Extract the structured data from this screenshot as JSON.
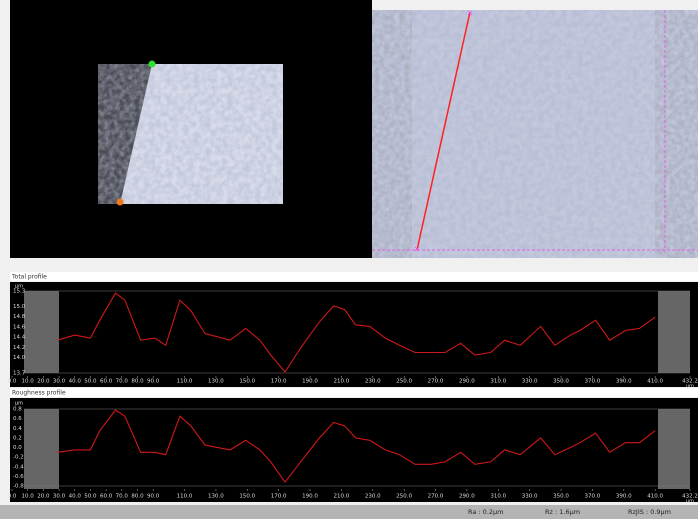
{
  "chart_data": [
    {
      "type": "line",
      "title": "Total profile",
      "y_label": "µm",
      "x_label": "µm",
      "x": [
        29,
        40,
        50,
        56,
        66,
        72,
        82,
        91,
        98,
        107,
        114,
        123,
        139,
        149,
        158,
        165,
        174,
        184,
        196,
        205,
        212,
        219,
        228,
        238,
        247,
        257,
        267,
        276,
        286,
        295,
        305,
        314,
        324,
        337,
        346,
        356,
        362,
        372,
        381,
        391,
        400,
        410
      ],
      "series": [
        {
          "color": "#d01818",
          "values": [
            14.34,
            14.44,
            14.38,
            14.73,
            15.26,
            15.12,
            14.34,
            14.38,
            14.24,
            15.12,
            14.92,
            14.47,
            14.34,
            14.57,
            14.34,
            14.05,
            13.72,
            14.19,
            14.7,
            15.01,
            14.94,
            14.64,
            14.61,
            14.38,
            14.24,
            14.1,
            14.1,
            14.1,
            14.28,
            14.05,
            14.1,
            14.34,
            14.24,
            14.61,
            14.24,
            14.44,
            14.53,
            14.73,
            14.34,
            14.53,
            14.57,
            14.79
          ]
        }
      ],
      "xlim": [
        0,
        432.2
      ],
      "xticks": [
        {
          "value": 0,
          "label": "0.0"
        },
        {
          "value": 10,
          "label": "10.0"
        },
        {
          "value": 20,
          "label": "20.0"
        },
        {
          "value": 30,
          "label": "30.0"
        },
        {
          "value": 40,
          "label": "40.0"
        },
        {
          "value": 50,
          "label": "50.0"
        },
        {
          "value": 60,
          "label": "60.0"
        },
        {
          "value": 70,
          "label": "70.0"
        },
        {
          "value": 80,
          "label": "80.0"
        },
        {
          "value": 90,
          "label": "90.0"
        },
        {
          "value": 110,
          "label": "110.0"
        },
        {
          "value": 130,
          "label": "130.0"
        },
        {
          "value": 150,
          "label": "150.0"
        },
        {
          "value": 170,
          "label": "170.0"
        },
        {
          "value": 190,
          "label": "190.0"
        },
        {
          "value": 210,
          "label": "210.0"
        },
        {
          "value": 230,
          "label": "230.0"
        },
        {
          "value": 250,
          "label": "250.0"
        },
        {
          "value": 270,
          "label": "270.0"
        },
        {
          "value": 290,
          "label": "290.0"
        },
        {
          "value": 310,
          "label": "310.0"
        },
        {
          "value": 330,
          "label": "330.0"
        },
        {
          "value": 350,
          "label": "350.0"
        },
        {
          "value": 370,
          "label": "370.0"
        },
        {
          "value": 390,
          "label": "390.0"
        },
        {
          "value": 410,
          "label": "410.0"
        },
        432.2
      ],
      "ylim": [
        13.7,
        15.3
      ],
      "yticks": [
        13.7,
        {
          "value": 14,
          "label": "14.0"
        },
        14.2,
        14.4,
        14.6,
        14.8,
        {
          "value": 15,
          "label": "15.0"
        },
        15.3
      ]
    },
    {
      "type": "line",
      "title": "Roughness profile",
      "y_label": "µm",
      "x_label": "µm",
      "x": [
        29,
        40,
        50,
        56,
        66,
        72,
        82,
        91,
        98,
        107,
        114,
        123,
        139,
        149,
        158,
        165,
        174,
        184,
        196,
        205,
        212,
        219,
        228,
        238,
        247,
        257,
        267,
        276,
        286,
        295,
        305,
        314,
        324,
        337,
        346,
        356,
        362,
        372,
        381,
        391,
        400,
        410
      ],
      "series": [
        {
          "color": "#d01818",
          "values": [
            -0.1,
            -0.05,
            -0.05,
            0.35,
            0.78,
            0.65,
            -0.1,
            -0.1,
            -0.15,
            0.65,
            0.45,
            0.05,
            -0.05,
            0.15,
            -0.05,
            -0.3,
            -0.72,
            -0.3,
            0.2,
            0.52,
            0.45,
            0.2,
            0.15,
            -0.05,
            -0.15,
            -0.35,
            -0.35,
            -0.3,
            -0.1,
            -0.35,
            -0.3,
            -0.05,
            -0.15,
            0.2,
            -0.15,
            0,
            0.1,
            0.3,
            -0.1,
            0.1,
            0.1,
            0.35
          ]
        }
      ],
      "xlim": [
        0,
        432.2
      ],
      "xticks": [
        {
          "value": 0,
          "label": "0.0"
        },
        {
          "value": 10,
          "label": "10.0"
        },
        {
          "value": 20,
          "label": "20.0"
        },
        {
          "value": 30,
          "label": "30.0"
        },
        {
          "value": 40,
          "label": "40.0"
        },
        {
          "value": 50,
          "label": "50.0"
        },
        {
          "value": 60,
          "label": "60.0"
        },
        {
          "value": 70,
          "label": "70.0"
        },
        {
          "value": 80,
          "label": "80.0"
        },
        {
          "value": 90,
          "label": "90.0"
        },
        {
          "value": 110,
          "label": "110.0"
        },
        {
          "value": 130,
          "label": "130.0"
        },
        {
          "value": 150,
          "label": "150.0"
        },
        {
          "value": 170,
          "label": "170.0"
        },
        {
          "value": 190,
          "label": "190.0"
        },
        {
          "value": 210,
          "label": "210.0"
        },
        {
          "value": 230,
          "label": "230.0"
        },
        {
          "value": 250,
          "label": "250.0"
        },
        {
          "value": 270,
          "label": "270.0"
        },
        {
          "value": 290,
          "label": "290.0"
        },
        {
          "value": 310,
          "label": "310.0"
        },
        {
          "value": 330,
          "label": "330.0"
        },
        {
          "value": 350,
          "label": "350.0"
        },
        {
          "value": 370,
          "label": "370.0"
        },
        {
          "value": 390,
          "label": "390.0"
        },
        {
          "value": 410,
          "label": "410.0"
        },
        432.2
      ],
      "ylim": [
        -0.8,
        0.8
      ],
      "yticks": [
        -0.8,
        -0.6,
        -0.4,
        -0.2,
        {
          "value": 0,
          "label": "0.0"
        },
        0.2,
        0.4,
        0.6,
        0.8
      ]
    }
  ],
  "status_bar": {
    "ra": "Ra : 0.2µm",
    "rz": "Rz : 1.6µm",
    "rzjis": "RzJIS : 0.9µm"
  }
}
